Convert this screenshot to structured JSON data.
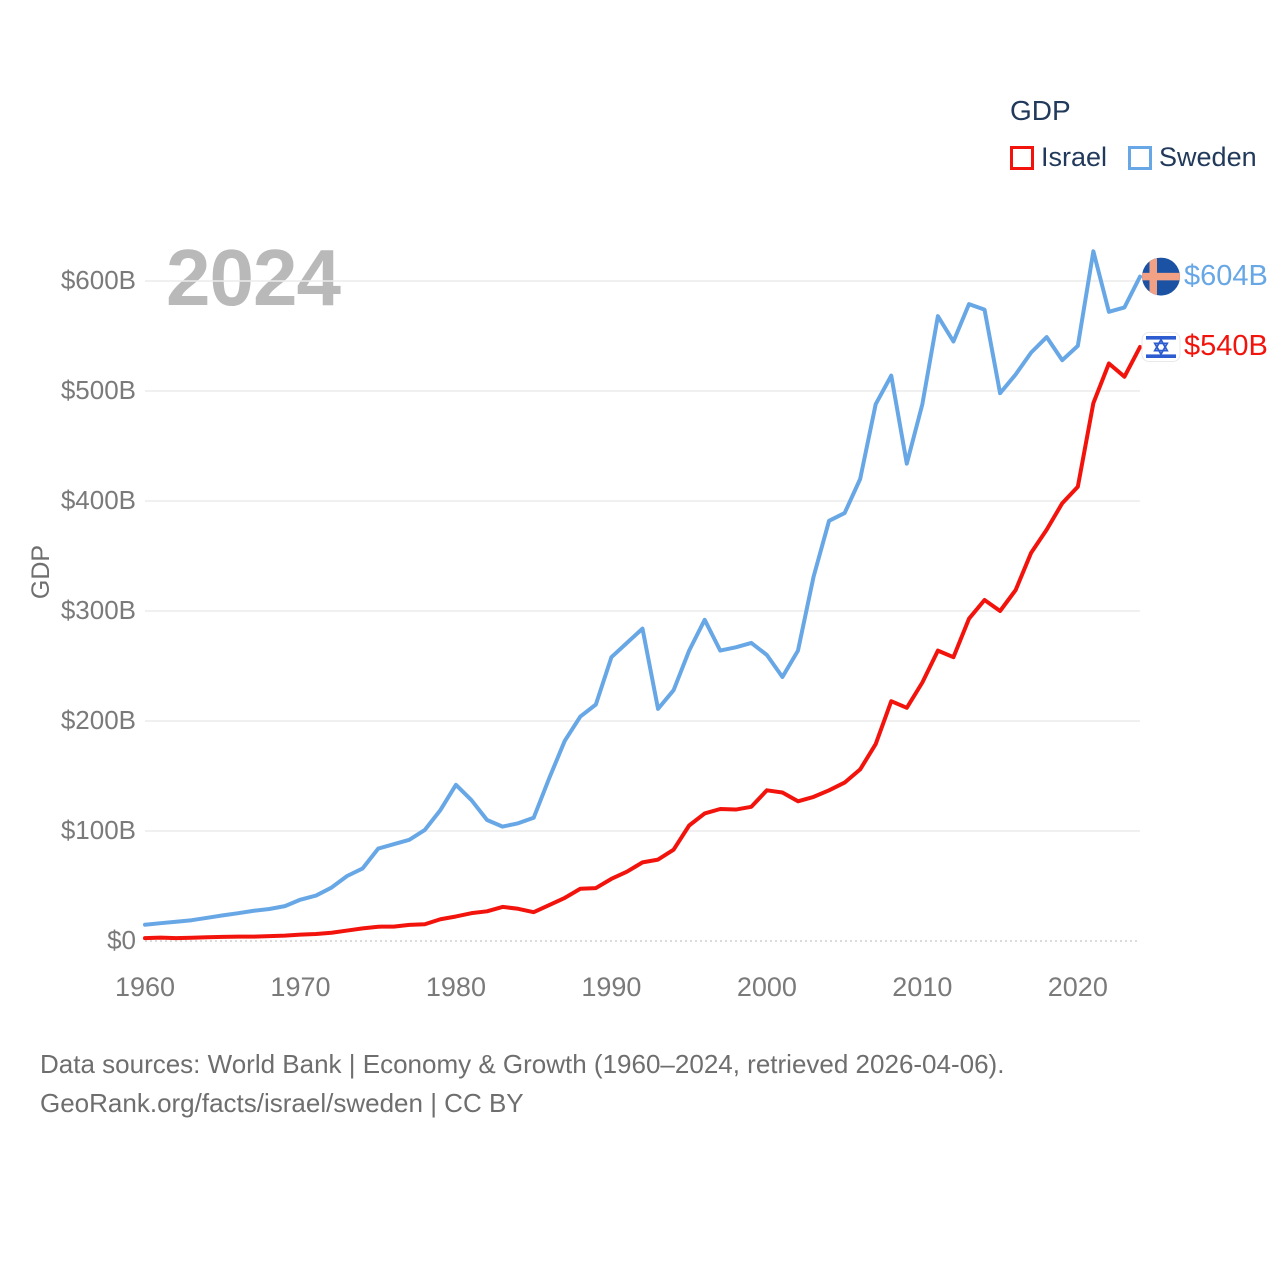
{
  "watermark": "2024",
  "legend": {
    "title": "GDP",
    "items": [
      {
        "label": "Israel",
        "color": "#f2140c"
      },
      {
        "label": "Sweden",
        "color": "#68a7e6"
      }
    ]
  },
  "icons": {
    "sweden_flag": {
      "shape": "circle",
      "background": "#1b52a4",
      "cross": "#f2a184"
    },
    "israel_flag": {
      "shape": "rounded-rect",
      "background": "#ffffff",
      "blue": "#2d5bd0",
      "border": "#e9e9e9"
    }
  },
  "chart_data": {
    "type": "line",
    "title": "GDP",
    "xlabel": "",
    "ylabel": "GDP",
    "grid": true,
    "legend_position": "top-right",
    "ylim": [
      0,
      650
    ],
    "x": [
      1960,
      1961,
      1962,
      1963,
      1964,
      1965,
      1966,
      1967,
      1968,
      1969,
      1970,
      1971,
      1972,
      1973,
      1974,
      1975,
      1976,
      1977,
      1978,
      1979,
      1980,
      1981,
      1982,
      1983,
      1984,
      1985,
      1986,
      1987,
      1988,
      1989,
      1990,
      1991,
      1992,
      1993,
      1994,
      1995,
      1996,
      1997,
      1998,
      1999,
      2000,
      2001,
      2002,
      2003,
      2004,
      2005,
      2006,
      2007,
      2008,
      2009,
      2010,
      2011,
      2012,
      2013,
      2014,
      2015,
      2016,
      2017,
      2018,
      2019,
      2020,
      2021,
      2022,
      2023,
      2024
    ],
    "x_ticks": [
      1960,
      1970,
      1980,
      1990,
      2000,
      2010,
      2020
    ],
    "x_tick_labels": [
      "1960",
      "1970",
      "1980",
      "1990",
      "2000",
      "2010",
      "2020"
    ],
    "y_ticks": [
      0,
      100,
      200,
      300,
      400,
      500,
      600
    ],
    "y_tick_labels": [
      "$0",
      "$100B",
      "$200B",
      "$300B",
      "$400B",
      "$500B",
      "$600B"
    ],
    "unit": "billions of US dollars",
    "series": [
      {
        "name": "Sweden",
        "color": "#68a7e6",
        "flag": "sweden",
        "end_label": "$604B",
        "values": [
          14.8,
          16.2,
          17.5,
          18.9,
          21.1,
          23.3,
          25.3,
          27.5,
          29.1,
          31.7,
          37.6,
          41.3,
          48.6,
          59.1,
          66.0,
          84.0,
          88.0,
          92.0,
          101.0,
          119.0,
          142.0,
          128.0,
          110.0,
          104.0,
          107.0,
          112.0,
          148.0,
          182.0,
          204.0,
          215.0,
          258.0,
          271.0,
          284.0,
          211.0,
          228.0,
          264.0,
          292.0,
          264.0,
          267.0,
          271.0,
          260.0,
          240.0,
          264.0,
          331.0,
          382.0,
          389.0,
          420.0,
          488.0,
          514.0,
          434.0,
          488.0,
          568.0,
          545.0,
          579.0,
          574.0,
          498.0,
          515.0,
          535.0,
          549.0,
          528.0,
          541.0,
          627.0,
          572.0,
          576.0,
          604.0
        ]
      },
      {
        "name": "Israel",
        "color": "#f2140c",
        "flag": "israel",
        "end_label": "$540B",
        "values": [
          2.6,
          3.1,
          2.6,
          3.0,
          3.4,
          3.7,
          4.0,
          4.0,
          4.4,
          4.9,
          5.8,
          6.4,
          7.5,
          9.5,
          11.5,
          13.0,
          13.1,
          14.7,
          15.2,
          19.8,
          22.3,
          25.3,
          27.0,
          31.0,
          29.3,
          26.2,
          32.7,
          39.2,
          47.5,
          48.1,
          56.5,
          63.0,
          71.5,
          74.0,
          83.0,
          105.0,
          116.0,
          120.0,
          119.5,
          122.0,
          137.0,
          135.0,
          127.0,
          131.0,
          137.0,
          144.0,
          156.0,
          179.0,
          218.0,
          212.0,
          235.0,
          264.0,
          258.0,
          293.0,
          310.0,
          300.0,
          319.0,
          353.0,
          374.0,
          398.0,
          413.0,
          489.0,
          525.0,
          513.0,
          540.0
        ]
      }
    ]
  },
  "footer": {
    "line1": "Data sources: World Bank | Economy & Growth (1960–2024, retrieved 2026-04-06).",
    "line2": "GeoRank.org/facts/israel/sweden | CC BY"
  }
}
